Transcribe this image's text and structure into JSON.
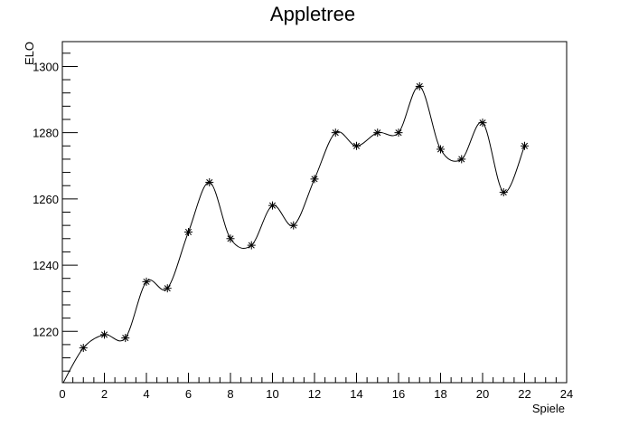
{
  "chart_data": {
    "type": "line",
    "title": "Appletree",
    "xlabel": "Spiele",
    "ylabel": "ELO",
    "xlim": [
      0,
      24
    ],
    "ylim": [
      1204.5,
      1307.5
    ],
    "x_major_ticks": [
      0,
      2,
      4,
      6,
      8,
      10,
      12,
      14,
      16,
      18,
      20,
      22,
      24
    ],
    "y_major_ticks": [
      1220,
      1240,
      1260,
      1280,
      1300
    ],
    "grid": false,
    "legend": "none",
    "line_color": "#000000",
    "marker": "asterisk",
    "series": [
      {
        "x": [
          0,
          1,
          2,
          3,
          4,
          5,
          6,
          7,
          8,
          9,
          10,
          11,
          12,
          13,
          14,
          15,
          16,
          17,
          18,
          19,
          20,
          21,
          22
        ],
        "y": [
          1204,
          1215,
          1219,
          1218,
          1235,
          1233,
          1250,
          1265,
          1248,
          1246,
          1258,
          1252,
          1266,
          1280,
          1276,
          1280,
          1280,
          1294,
          1275,
          1272,
          1283,
          1262,
          1276
        ]
      }
    ]
  }
}
